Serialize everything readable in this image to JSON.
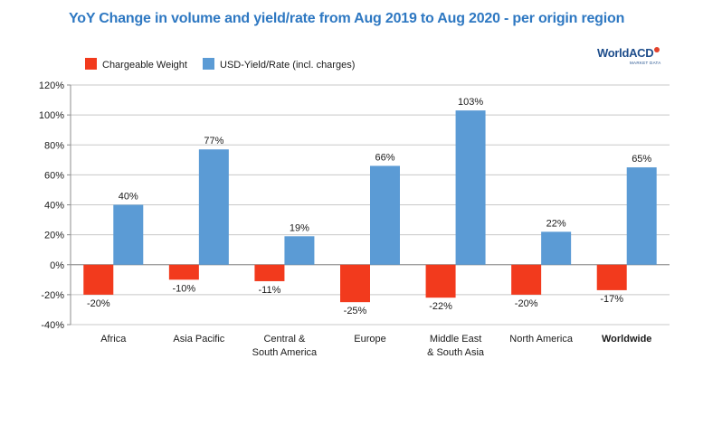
{
  "title": "YoY Change in volume and yield/rate from Aug 2019 to Aug 2020 - per origin region",
  "logo": {
    "main": "WorldACD",
    "sub": "MARKET DATA"
  },
  "colors": {
    "chargeable": "#f23a1d",
    "yield": "#5b9bd5",
    "grid": "#c8c8c8",
    "axis": "#8c8c8c"
  },
  "chart_data": {
    "type": "bar",
    "title": "YoY Change in volume and yield/rate from Aug 2019 to Aug 2020 - per origin region",
    "categories": [
      "Africa",
      "Asia Pacific",
      "Central & South America",
      "Europe",
      "Middle East & South Asia",
      "North America",
      "Worldwide"
    ],
    "category_lines": [
      [
        "Africa"
      ],
      [
        "Asia Pacific"
      ],
      [
        "Central &",
        "South America"
      ],
      [
        "Europe"
      ],
      [
        "Middle East",
        "& South Asia"
      ],
      [
        "North America"
      ],
      [
        "Worldwide"
      ]
    ],
    "bold_category": "Worldwide",
    "series": [
      {
        "name": "Chargeable Weight",
        "values": [
          -20,
          -10,
          -11,
          -25,
          -22,
          -20,
          -17
        ],
        "labels": [
          "-20%",
          "-10%",
          "-11%",
          "-25%",
          "-22%",
          "-20%",
          "-17%"
        ]
      },
      {
        "name": "USD-Yield/Rate (incl. charges)",
        "values": [
          40,
          77,
          19,
          66,
          103,
          22,
          65
        ],
        "labels": [
          "40%",
          "77%",
          "19%",
          "66%",
          "103%",
          "22%",
          "65%"
        ]
      }
    ],
    "ylim": [
      -40,
      120
    ],
    "yticks": [
      -40,
      -20,
      0,
      20,
      40,
      60,
      80,
      100,
      120
    ],
    "ytick_labels": [
      "-40%",
      "-20%",
      "0%",
      "20%",
      "40%",
      "60%",
      "80%",
      "100%",
      "120%"
    ],
    "xlabel": "",
    "ylabel": "",
    "grid": true,
    "legend": "top-left"
  }
}
